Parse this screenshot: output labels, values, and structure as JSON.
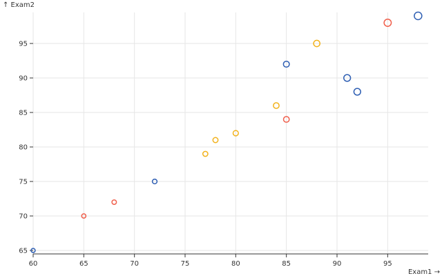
{
  "chart_data": {
    "type": "scatter",
    "xlabel": "Exam1 →",
    "ylabel": "↑ Exam2",
    "xlim": [
      60,
      99
    ],
    "ylim": [
      64.5,
      99.5
    ],
    "x_ticks": [
      60,
      65,
      70,
      75,
      80,
      85,
      90,
      95
    ],
    "y_ticks": [
      65,
      70,
      75,
      80,
      85,
      90,
      95
    ],
    "grid": true,
    "point_encoding": "hollow circles; color and size vary by point",
    "colors": {
      "blue": "#2f5fb3",
      "red": "#f0604d",
      "orange": "#f2b21c"
    },
    "points": [
      {
        "x": 60,
        "y": 65,
        "color": "#2f5fb3",
        "size": 0.15
      },
      {
        "x": 65,
        "y": 70,
        "color": "#f0604d",
        "size": 0.2
      },
      {
        "x": 68,
        "y": 72,
        "color": "#f0604d",
        "size": 0.25
      },
      {
        "x": 72,
        "y": 75,
        "color": "#2f5fb3",
        "size": 0.3
      },
      {
        "x": 77,
        "y": 79,
        "color": "#f2b21c",
        "size": 0.38
      },
      {
        "x": 78,
        "y": 81,
        "color": "#f2b21c",
        "size": 0.4
      },
      {
        "x": 80,
        "y": 82,
        "color": "#f2b21c",
        "size": 0.45
      },
      {
        "x": 84,
        "y": 86,
        "color": "#f2b21c",
        "size": 0.55
      },
      {
        "x": 85,
        "y": 84,
        "color": "#f0604d",
        "size": 0.55
      },
      {
        "x": 85,
        "y": 92,
        "color": "#2f5fb3",
        "size": 0.6
      },
      {
        "x": 88,
        "y": 95,
        "color": "#f2b21c",
        "size": 0.7
      },
      {
        "x": 91,
        "y": 90,
        "color": "#2f5fb3",
        "size": 0.8
      },
      {
        "x": 92,
        "y": 88,
        "color": "#2f5fb3",
        "size": 0.8
      },
      {
        "x": 95,
        "y": 98,
        "color": "#f0604d",
        "size": 0.9
      },
      {
        "x": 98,
        "y": 99,
        "color": "#2f5fb3",
        "size": 1.0
      }
    ]
  }
}
